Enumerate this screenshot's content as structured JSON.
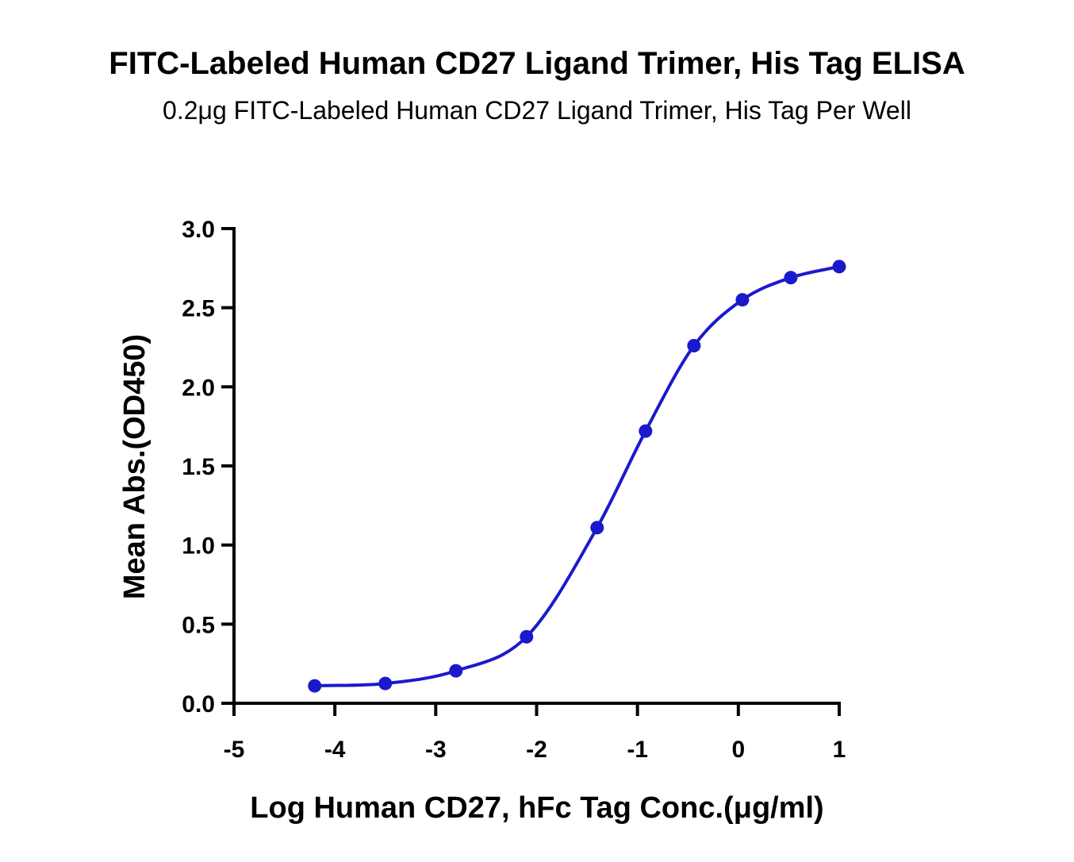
{
  "chart_data": {
    "type": "line",
    "title": "FITC-Labeled Human CD27 Ligand Trimer, His Tag ELISA",
    "subtitle": "0.2μg FITC-Labeled Human CD27 Ligand Trimer, His Tag Per Well",
    "xlabel": "Log Human CD27, hFc Tag Conc.(μg/ml)",
    "ylabel": "Mean Abs.(OD450)",
    "xlim": [
      -5,
      1
    ],
    "ylim": [
      0,
      3.0
    ],
    "x_ticks": [
      "-5",
      "-4",
      "-3",
      "-2",
      "-1",
      "0",
      "1"
    ],
    "y_ticks": [
      "0.0",
      "0.5",
      "1.0",
      "1.5",
      "2.0",
      "2.5",
      "3.0"
    ],
    "grid": false,
    "series": [
      {
        "color": "#1a1acc",
        "marker": "circle",
        "fit": "sigmoidal",
        "x": [
          -4.2,
          -3.5,
          -2.8,
          -2.1,
          -1.4,
          -0.92,
          -0.44,
          0.04,
          0.52,
          1.0
        ],
        "y": [
          0.11,
          0.125,
          0.205,
          0.42,
          1.11,
          1.72,
          2.26,
          2.55,
          2.69,
          2.76
        ]
      }
    ]
  }
}
